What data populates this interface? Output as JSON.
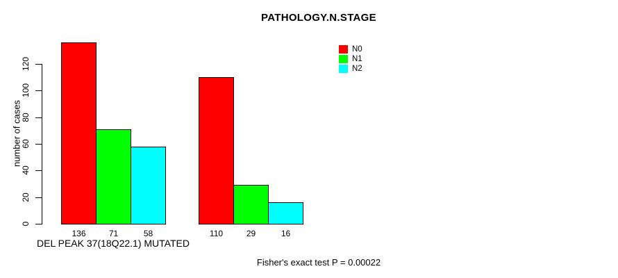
{
  "chart_data": {
    "type": "bar",
    "title": "PATHOLOGY.N.STAGE",
    "ylabel": "number of cases",
    "xlabel": "DEL PEAK 37(18Q22.1) MUTATED",
    "ylim": [
      0,
      120
    ],
    "yticks": [
      0,
      20,
      40,
      60,
      80,
      100,
      120
    ],
    "groups": 2,
    "grid": false,
    "legend_position": "top-right",
    "series": [
      {
        "name": "N0",
        "color": "#FF0000",
        "values": [
          136,
          110
        ]
      },
      {
        "name": "N1",
        "color": "#00FF00",
        "values": [
          71,
          29
        ]
      },
      {
        "name": "N2",
        "color": "#00FFFF",
        "values": [
          58,
          16
        ]
      }
    ]
  },
  "footer": {
    "caption": "Fisher's exact test P = 0.00022"
  }
}
